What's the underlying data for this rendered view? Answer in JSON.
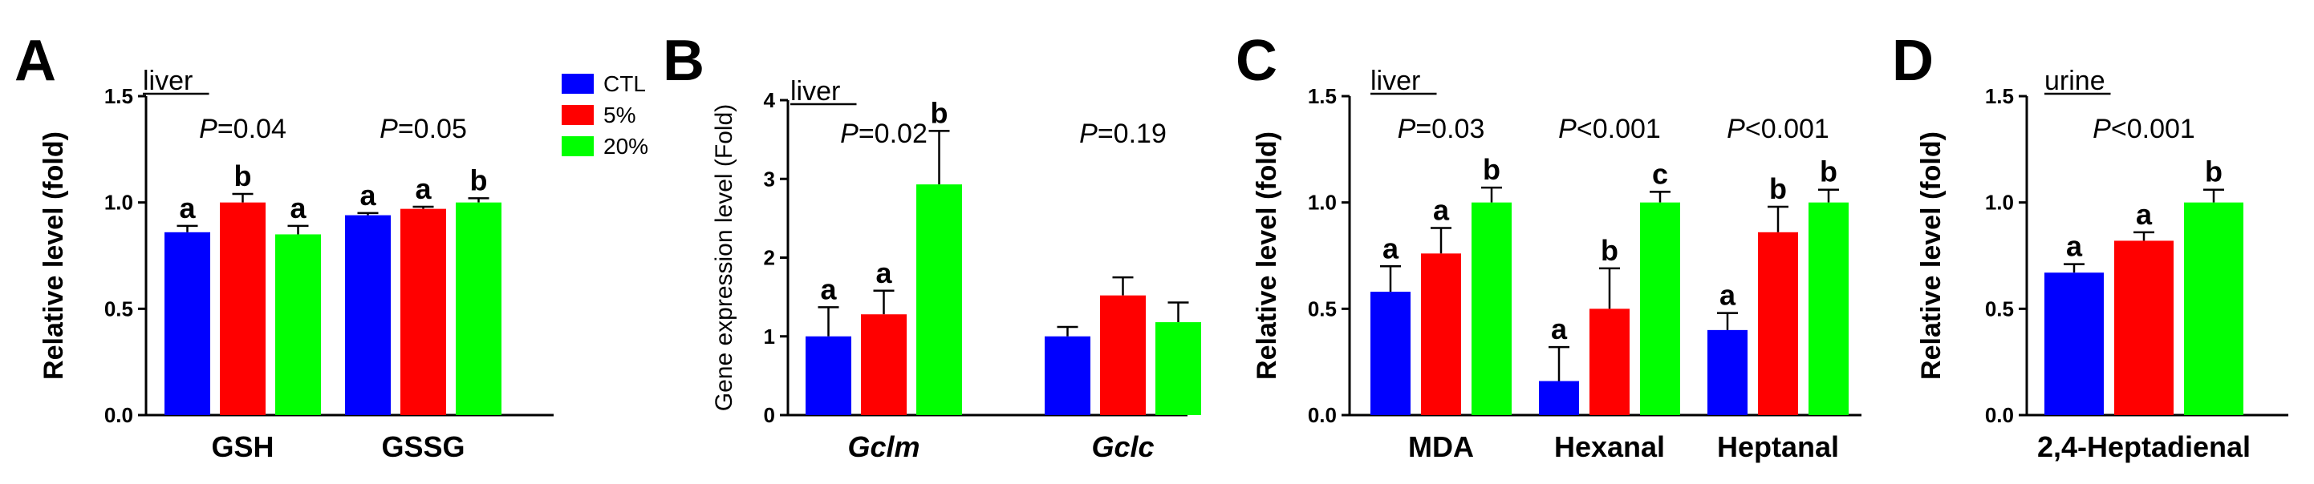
{
  "colors": {
    "CTL": "#0000ff",
    "5%": "#ff0000",
    "20%": "#00ff00",
    "axis": "#000000",
    "error": "#000000"
  },
  "legend": {
    "entries": [
      {
        "label": "CTL",
        "colorKey": "CTL"
      },
      {
        "label": "5%",
        "colorKey": "5%"
      },
      {
        "label": "20%",
        "colorKey": "20%"
      }
    ]
  },
  "chart_data": [
    {
      "panel": "A",
      "type": "bar",
      "tissue": "liver",
      "ylabel": "Relative level (fold)",
      "ylim": [
        0,
        1.5
      ],
      "yticks": [
        "0.0",
        "0.5",
        "1.0",
        "1.5"
      ],
      "groups": [
        "CTL",
        "5%",
        "20%"
      ],
      "categories": [
        {
          "label": "GSH",
          "italic": false,
          "p_prefix": "P",
          "p_rest": "=0.04",
          "values": [
            0.86,
            1.0,
            0.85
          ],
          "errors": [
            0.03,
            0.04,
            0.04
          ],
          "letters": [
            "a",
            "b",
            "a"
          ]
        },
        {
          "label": "GSSG",
          "italic": false,
          "p_prefix": "P",
          "p_rest": "=0.05",
          "values": [
            0.94,
            0.97,
            1.0
          ],
          "errors": [
            0.01,
            0.01,
            0.02
          ],
          "letters": [
            "a",
            "a",
            "b"
          ]
        }
      ]
    },
    {
      "panel": "B",
      "type": "bar",
      "tissue": "liver",
      "ylabel": "Gene expression level (Fold)",
      "ylim": [
        0,
        4
      ],
      "yticks": [
        "0",
        "1",
        "2",
        "3",
        "4"
      ],
      "groups": [
        "CTL",
        "5%",
        "20%"
      ],
      "categories": [
        {
          "label": "Gclm",
          "italic": true,
          "p_prefix": "P",
          "p_rest": "=0.02",
          "values": [
            1.0,
            1.28,
            2.93
          ],
          "errors": [
            0.37,
            0.3,
            0.68
          ],
          "letters": [
            "a",
            "a",
            "b"
          ]
        },
        {
          "label": "Gclc",
          "italic": true,
          "p_prefix": "P",
          "p_rest": "=0.19",
          "values": [
            1.0,
            1.52,
            1.18
          ],
          "errors": [
            0.12,
            0.23,
            0.25
          ],
          "letters": [
            "",
            "",
            ""
          ]
        }
      ]
    },
    {
      "panel": "C",
      "type": "bar",
      "tissue": "liver",
      "ylabel": "Relative level (fold)",
      "ylim": [
        0,
        1.5
      ],
      "yticks": [
        "0.0",
        "0.5",
        "1.0",
        "1.5"
      ],
      "groups": [
        "CTL",
        "5%",
        "20%"
      ],
      "categories": [
        {
          "label": "MDA",
          "italic": false,
          "p_prefix": "P",
          "p_rest": "=0.03",
          "values": [
            0.58,
            0.76,
            1.0
          ],
          "errors": [
            0.12,
            0.12,
            0.07
          ],
          "letters": [
            "a",
            "a",
            "b"
          ]
        },
        {
          "label": "Hexanal",
          "italic": false,
          "p_prefix": "P",
          "p_rest": "<0.001",
          "values": [
            0.16,
            0.5,
            1.0
          ],
          "errors": [
            0.16,
            0.19,
            0.05
          ],
          "letters": [
            "a",
            "b",
            "c"
          ]
        },
        {
          "label": "Heptanal",
          "italic": false,
          "p_prefix": "P",
          "p_rest": "<0.001",
          "values": [
            0.4,
            0.86,
            1.0
          ],
          "errors": [
            0.08,
            0.12,
            0.06
          ],
          "letters": [
            "a",
            "b",
            "b"
          ]
        }
      ]
    },
    {
      "panel": "D",
      "type": "bar",
      "tissue": "urine",
      "ylabel": "Relative level (fold)",
      "ylim": [
        0,
        1.5
      ],
      "yticks": [
        "0.0",
        "0.5",
        "1.0",
        "1.5"
      ],
      "groups": [
        "CTL",
        "5%",
        "20%"
      ],
      "categories": [
        {
          "label": "2,4-Heptadienal",
          "italic": false,
          "p_prefix": "P",
          "p_rest": "<0.001",
          "values": [
            0.67,
            0.82,
            1.0
          ],
          "errors": [
            0.04,
            0.04,
            0.06
          ],
          "letters": [
            "a",
            "a",
            "b"
          ]
        }
      ]
    }
  ]
}
